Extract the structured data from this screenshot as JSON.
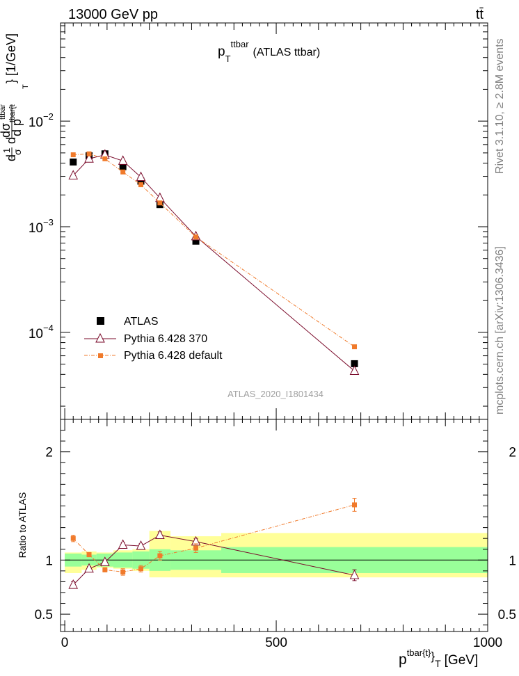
{
  "header": {
    "energy_label": "13000 GeV pp",
    "process_label": "tt̄"
  },
  "side_labels": {
    "rivet": "Rivet 3.1.10, ≥ 2.8M events",
    "mcplots": "mcplots.cern.ch [arXiv:1306.3436]"
  },
  "chart_data": [
    {
      "type": "scatter",
      "title": "p_T^ttbar (ATLAS ttbar)",
      "title_main": "p",
      "title_sub": "T",
      "title_sup": "ttbar",
      "title_tail": "(ATLAS ttbar)",
      "ylabel": "d(1/σ)dσ^{tbar{t}}/d p_T [1/GeV]",
      "ylabel_tail": "} [1/GeV]",
      "yscale": "log",
      "ylim": [
        1.5e-05,
        0.085
      ],
      "xlim": [
        -10,
        1000
      ],
      "yticks": [
        {
          "value": 0.01,
          "label": "10",
          "exp": "−2"
        },
        {
          "value": 0.001,
          "label": "10",
          "exp": "−3"
        },
        {
          "value": 0.0001,
          "label": "10",
          "exp": "−4"
        }
      ],
      "watermark": "ATLAS_2020_I1801434",
      "legend": {
        "placement": "lower-left",
        "entries": [
          "ATLAS",
          "Pythia 6.428 370",
          "Pythia 6.428 default"
        ]
      },
      "bins": [
        0,
        40,
        75,
        115,
        160,
        200,
        250,
        370,
        1000
      ],
      "x": [
        20,
        57.5,
        95,
        137.5,
        180,
        225,
        310,
        685
      ],
      "series": [
        {
          "name": "ATLAS",
          "marker": "square",
          "color": "#000000",
          "values": [
            0.0041,
            0.0047,
            0.0049,
            0.0037,
            0.0027,
            0.00162,
            0.00073,
            5.05e-05
          ]
        },
        {
          "name": "Pythia 6.428 370",
          "marker": "triangle",
          "color": "#7a0a2a",
          "values": [
            0.00305,
            0.0044,
            0.0048,
            0.0042,
            0.00295,
            0.00187,
            0.00081,
            4.3e-05
          ]
        },
        {
          "name": "Pythia 6.428 default",
          "marker": "small-square",
          "color": "#f07a2b",
          "values": [
            0.0048,
            0.0049,
            0.0044,
            0.0033,
            0.0025,
            0.00168,
            0.0008,
            7.3e-05
          ]
        }
      ]
    },
    {
      "type": "scatter",
      "ylabel": "Ratio to ATLAS",
      "xlabel": "p_T^{tbar{t}} [GeV]",
      "xlabel_main": "p",
      "xlabel_sup": "tbar{t}",
      "xlabel_tail": "}",
      "xlabel_sub": "T",
      "xlabel_unit": "[GeV]",
      "ylim": [
        0.34,
        2.3
      ],
      "xlim": [
        -10,
        1000
      ],
      "yticks": [
        {
          "value": 0.5,
          "label": "0.5"
        },
        {
          "value": 1,
          "label": "1"
        },
        {
          "value": 2,
          "label": "2"
        }
      ],
      "xticks": [
        {
          "value": 0,
          "label": "0"
        },
        {
          "value": 500,
          "label": "500"
        },
        {
          "value": 1000,
          "label": "1000"
        }
      ],
      "bands": {
        "inner_color": "#99ff99",
        "outer_color": "#ffff99",
        "inner": [
          [
            0.94,
            1.06
          ],
          [
            0.95,
            1.05
          ],
          [
            0.94,
            1.06
          ],
          [
            0.93,
            1.07
          ],
          [
            0.92,
            1.08
          ],
          [
            0.9,
            1.1
          ],
          [
            0.91,
            1.09
          ],
          [
            0.88,
            1.12
          ]
        ],
        "outer": [
          [
            0.88,
            1.07
          ],
          [
            0.91,
            1.08
          ],
          [
            0.93,
            1.07
          ],
          [
            0.92,
            1.09
          ],
          [
            0.9,
            1.1
          ],
          [
            0.84,
            1.27
          ],
          [
            0.84,
            1.22
          ],
          [
            0.84,
            1.25
          ]
        ]
      },
      "x": [
        20,
        57.5,
        95,
        137.5,
        180,
        225,
        310,
        685
      ],
      "series": [
        {
          "name": "Pythia 6.428 370",
          "marker": "triangle",
          "color": "#7a0a2a",
          "values": [
            0.77,
            0.92,
            0.98,
            1.14,
            1.13,
            1.23,
            1.17,
            0.86
          ],
          "errors": [
            0.03,
            0.02,
            0.02,
            0.02,
            0.02,
            0.03,
            0.03,
            0.05
          ]
        },
        {
          "name": "Pythia 6.428 default",
          "marker": "small-square",
          "color": "#f07a2b",
          "values": [
            1.2,
            1.05,
            0.91,
            0.89,
            0.92,
            1.04,
            1.11,
            1.51
          ],
          "errors": [
            0.03,
            0.02,
            0.02,
            0.03,
            0.03,
            0.04,
            0.04,
            0.06
          ]
        }
      ]
    }
  ]
}
